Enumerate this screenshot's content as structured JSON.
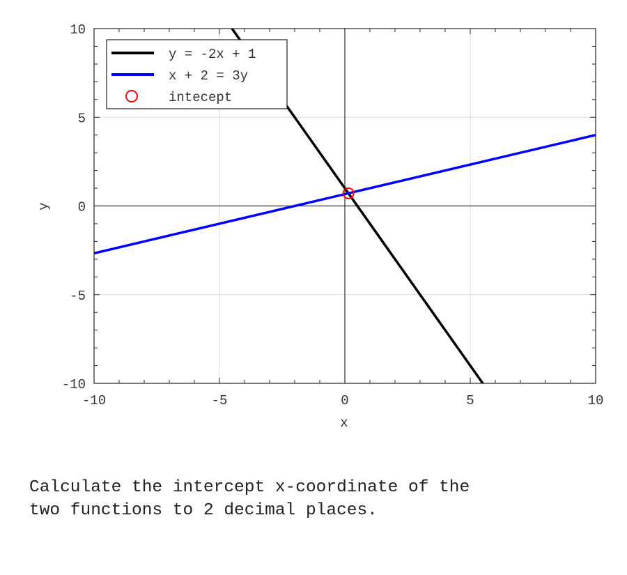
{
  "chart_data": {
    "type": "line",
    "xlabel": "x",
    "ylabel": "y",
    "xlim": [
      -10,
      10
    ],
    "ylim": [
      -10,
      10
    ],
    "xticks": [
      -10,
      -5,
      0,
      5,
      10
    ],
    "yticks": [
      -10,
      -5,
      0,
      5,
      10
    ],
    "grid": true,
    "legend_position": "top-left",
    "series": [
      {
        "name": "y = -2x + 1",
        "type": "line",
        "color": "#000000",
        "x": [
          -4.5,
          5.5
        ],
        "y": [
          10,
          -10
        ]
      },
      {
        "name": "x + 2 = 3y",
        "type": "line",
        "color": "#0000ff",
        "x": [
          -10,
          10
        ],
        "y": [
          -2.667,
          4
        ]
      },
      {
        "name": "intecept",
        "type": "scatter",
        "marker": "open-circle",
        "color": "#ff0000",
        "x": [
          0.143
        ],
        "y": [
          0.714
        ]
      }
    ]
  },
  "question": "Calculate the intercept x-coordinate of the\ntwo functions to 2 decimal places."
}
